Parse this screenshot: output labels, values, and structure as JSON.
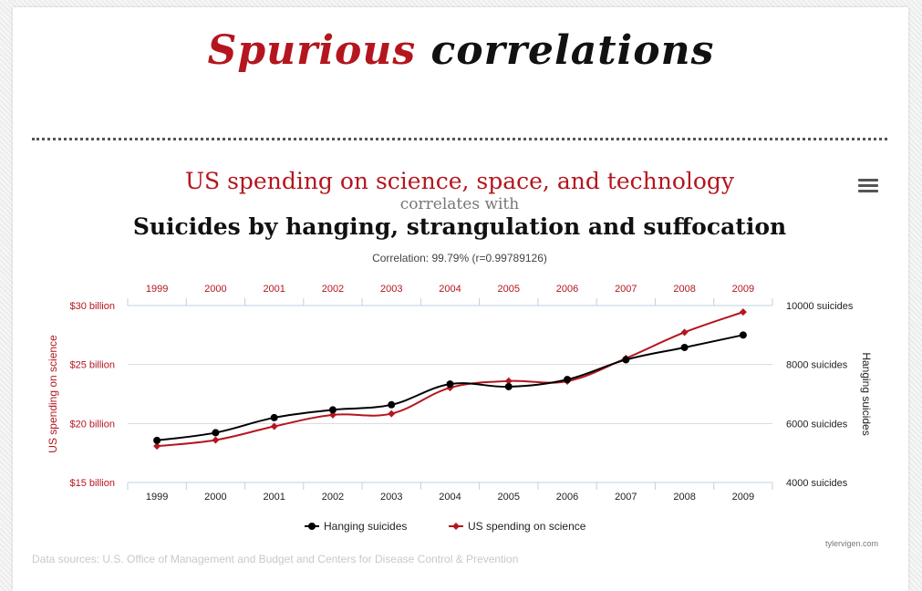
{
  "site": {
    "title_word1": "Spurious",
    "title_word2": "correlations",
    "brand_red": "#b4161f"
  },
  "chart_data": {
    "type": "line",
    "title": "US spending on science, space, and technology",
    "connector": "correlates with",
    "subtitle": "Suicides by hanging, strangulation and suffocation",
    "correlation": "Correlation: 99.79% (r=0.99789126)",
    "x": [
      "1999",
      "2000",
      "2001",
      "2002",
      "2003",
      "2004",
      "2005",
      "2006",
      "2007",
      "2008",
      "2009"
    ],
    "left_axis": {
      "label": "US spending on science",
      "range": [
        15,
        30
      ],
      "ticks": [
        15,
        20,
        25,
        30
      ],
      "tick_labels": [
        "$15 billion",
        "$20 billion",
        "$25 billion",
        "$30 billion"
      ]
    },
    "right_axis": {
      "label": "Hanging suicides",
      "range": [
        4000,
        10000
      ],
      "ticks": [
        4000,
        6000,
        8000,
        10000
      ],
      "tick_labels": [
        "4000 suicides",
        "6000 suicides",
        "8000 suicides",
        "10000 suicides"
      ]
    },
    "series": [
      {
        "name": "Hanging suicides",
        "axis": "right",
        "color": "#000000",
        "marker": "circle",
        "values": [
          5427,
          5688,
          6198,
          6462,
          6635,
          7336,
          7248,
          7491,
          8161,
          8578,
          9000
        ]
      },
      {
        "name": "US spending on science",
        "axis": "left",
        "color": "#b4161f",
        "marker": "diamond",
        "values": [
          18.079,
          18.594,
          19.753,
          20.734,
          20.831,
          23.029,
          23.597,
          23.584,
          25.525,
          27.731,
          29.449
        ]
      }
    ],
    "grid": true,
    "legend_position": "bottom-center",
    "credit": "tylervigen.com"
  },
  "footer": {
    "sources": "Data sources: U.S. Office of Management and Budget and Centers for Disease Control & Prevention"
  }
}
